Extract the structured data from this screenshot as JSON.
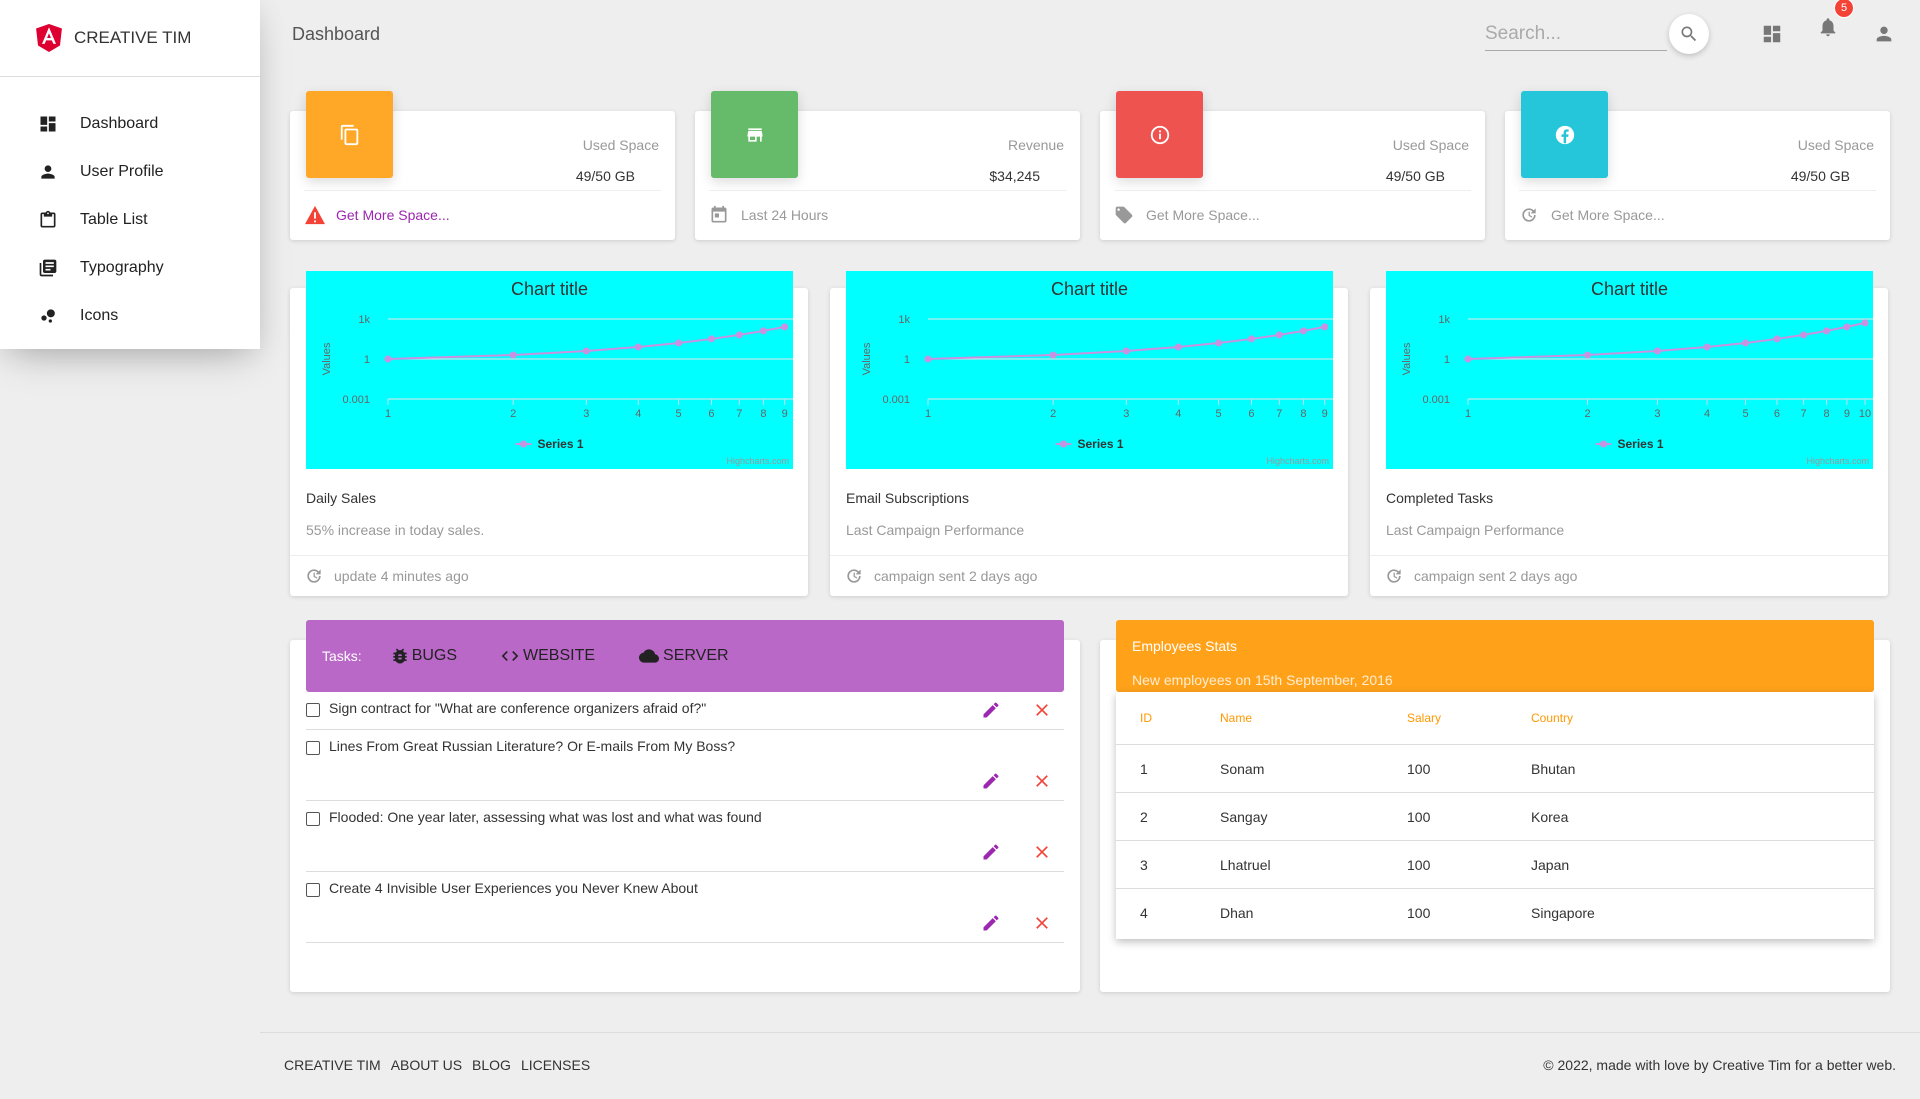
{
  "brand": {
    "name": "CREATIVE TIM",
    "logo_icon": "angular-logo-icon",
    "logo_color": "#dd0031"
  },
  "sidebar": {
    "items": [
      {
        "label": "Dashboard",
        "icon": "dashboard-icon"
      },
      {
        "label": "User Profile",
        "icon": "person-icon"
      },
      {
        "label": "Table List",
        "icon": "clipboard-icon"
      },
      {
        "label": "Typography",
        "icon": "library-books-icon"
      },
      {
        "label": "Icons",
        "icon": "bubble-chart-icon"
      }
    ]
  },
  "header": {
    "title": "Dashboard",
    "search_placeholder": "Search...",
    "notification_count": "5"
  },
  "stats": [
    {
      "category": "Used Space",
      "value": "49/50 GB",
      "footer": "Get More Space...",
      "color": "#ffa726",
      "icon": "copy-icon",
      "footer_icon": "warning-icon"
    },
    {
      "category": "Revenue",
      "value": "$34,245",
      "footer": "Last 24 Hours",
      "color": "#66bb6a",
      "icon": "store-icon",
      "footer_icon": "calendar-icon"
    },
    {
      "category": "Used Space",
      "value": "49/50 GB",
      "footer": "Get More Space...",
      "color": "#ef5350",
      "icon": "info-icon",
      "footer_icon": "tag-icon"
    },
    {
      "category": "Used Space",
      "value": "49/50 GB",
      "footer": "Get More Space...",
      "color": "#26c6da",
      "icon": "facebook-icon",
      "footer_icon": "update-icon"
    }
  ],
  "chart_cards": [
    {
      "title": "Daily Sales",
      "subtitle": "55% increase in today sales.",
      "footer": "update 4 minutes ago"
    },
    {
      "title": "Email Subscriptions",
      "subtitle": "Last Campaign Performance",
      "footer": "campaign sent 2 days ago"
    },
    {
      "title": "Completed Tasks",
      "subtitle": "Last Campaign Performance",
      "footer": "campaign sent 2 days ago"
    }
  ],
  "chart_data": [
    {
      "type": "line",
      "title": "Chart title",
      "ylabel": "Values",
      "xscale": "log",
      "yscale": "log",
      "x": [
        1,
        2,
        3,
        4,
        5,
        6,
        7,
        8,
        9
      ],
      "y_ticks": [
        "0.001",
        "1",
        "1k"
      ],
      "x_ticks": [
        "1",
        "2",
        "3",
        "4",
        "5",
        "6",
        "7",
        "8",
        "9"
      ],
      "series": [
        {
          "name": "Series 1",
          "values": [
            1,
            2,
            4,
            8,
            16,
            32,
            64,
            128,
            256
          ]
        }
      ],
      "credit": "Highcharts.com",
      "background": "#00ffff",
      "series_color": "#c992e0",
      "legend": "bottom-center"
    },
    {
      "type": "line",
      "title": "Chart title",
      "ylabel": "Values",
      "xscale": "log",
      "yscale": "log",
      "x": [
        1,
        2,
        3,
        4,
        5,
        6,
        7,
        8,
        9
      ],
      "y_ticks": [
        "0.001",
        "1",
        "1k"
      ],
      "x_ticks": [
        "1",
        "2",
        "3",
        "4",
        "5",
        "6",
        "7",
        "8",
        "9"
      ],
      "series": [
        {
          "name": "Series 1",
          "values": [
            1,
            2,
            4,
            8,
            16,
            32,
            64,
            128,
            256
          ]
        }
      ],
      "credit": "Highcharts.com",
      "background": "#00ffff",
      "series_color": "#c992e0",
      "legend": "bottom-center"
    },
    {
      "type": "line",
      "title": "Chart title",
      "ylabel": "Values",
      "xscale": "log",
      "yscale": "log",
      "x": [
        1,
        2,
        3,
        4,
        5,
        6,
        7,
        8,
        9,
        10
      ],
      "y_ticks": [
        "0.001",
        "1",
        "1k"
      ],
      "x_ticks": [
        "1",
        "2",
        "3",
        "4",
        "5",
        "6",
        "7",
        "8",
        "9",
        "10"
      ],
      "series": [
        {
          "name": "Series 1",
          "values": [
            1,
            2,
            4,
            8,
            16,
            32,
            64,
            128,
            256,
            512
          ]
        }
      ],
      "credit": "Highcharts.com",
      "background": "#00ffff",
      "series_color": "#c992e0",
      "legend": "bottom-center"
    }
  ],
  "tasks": {
    "label": "Tasks:",
    "tabs": [
      {
        "label": "BUGS",
        "icon": "bug-icon"
      },
      {
        "label": "WEBSITE",
        "icon": "code-icon"
      },
      {
        "label": "SERVER",
        "icon": "cloud-icon"
      }
    ],
    "items": [
      "Sign contract for \"What are conference organizers afraid of?\"",
      "Lines From Great Russian Literature? Or E-mails From My Boss?",
      "Flooded: One year later, assessing what was lost and what was found",
      "Create 4 Invisible User Experiences you Never Knew About"
    ],
    "edit_color": "#9c27b0",
    "delete_color": "#f44336"
  },
  "employees": {
    "title": "Employees Stats",
    "subtitle": "New employees on 15th September, 2016",
    "columns": [
      "ID",
      "Name",
      "Salary",
      "Country"
    ],
    "rows": [
      [
        "1",
        "Sonam",
        "100",
        "Bhutan"
      ],
      [
        "2",
        "Sangay",
        "100",
        "Korea"
      ],
      [
        "3",
        "Lhatruel",
        "100",
        "Japan"
      ],
      [
        "4",
        "Dhan",
        "100",
        "Singapore"
      ]
    ]
  },
  "footer": {
    "links": [
      "CREATIVE TIM",
      "ABOUT US",
      "BLOG",
      "LICENSES"
    ],
    "copyright": "© 2022, made with love by Creative Tim for a better web."
  }
}
